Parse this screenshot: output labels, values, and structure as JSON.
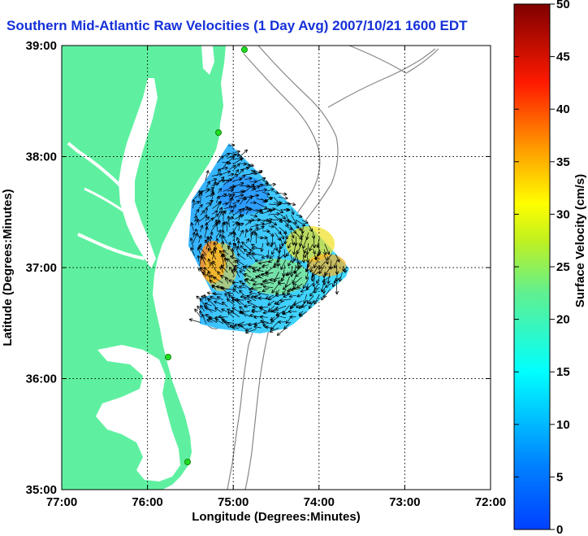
{
  "title": "Southern Mid-Atlantic Raw Velocities (1 Day Avg) 2007/10/21 1600 EDT",
  "x_axis": {
    "label": "Longitude (Degrees:Minutes)",
    "ticks": [
      "77:00",
      "76:00",
      "75:00",
      "74:00",
      "73:00",
      "72:00"
    ]
  },
  "y_axis": {
    "label": "Latitude (Degrees:Minutes)",
    "ticks": [
      "39:00",
      "38:00",
      "37:00",
      "36:00",
      "35:00"
    ]
  },
  "colorbar": {
    "label": "Surface Velocity (cm/s)",
    "ticks": [
      "50",
      "45",
      "40",
      "35",
      "30",
      "25",
      "20",
      "15",
      "10",
      "5",
      "0"
    ],
    "min": 0,
    "max": 50,
    "colormap": "jet"
  },
  "map": {
    "lon_range": [
      -77,
      -72
    ],
    "lat_range": [
      35,
      39
    ],
    "grid": true,
    "land_color": "#5ef0a0",
    "bathymetry_color": "#888888",
    "station_color": "#22dd22"
  }
}
